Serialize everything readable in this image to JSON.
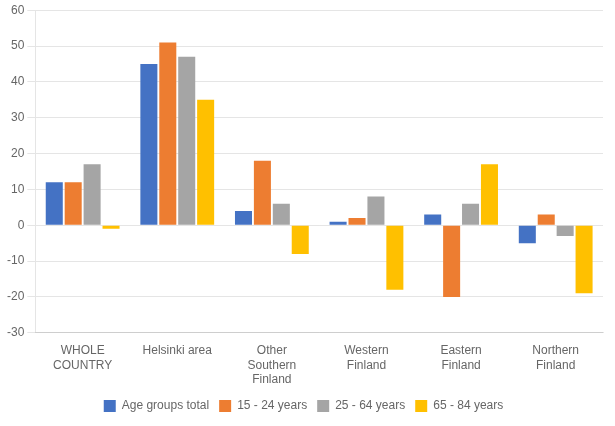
{
  "chart_data": {
    "type": "bar",
    "categories": [
      "WHOLE\nCOUNTRY",
      "Helsinki area",
      "Other\nSouthern\nFinland",
      "Western\nFinland",
      "Eastern\nFinland",
      "Northern\nFinland"
    ],
    "series": [
      {
        "name": "Age groups total",
        "color": "#4472C4",
        "values": [
          12,
          45,
          4,
          1,
          3,
          -5
        ]
      },
      {
        "name": "15 - 24 years",
        "color": "#ED7D31",
        "values": [
          12,
          51,
          18,
          2,
          -20,
          3
        ]
      },
      {
        "name": "25 - 64 years",
        "color": "#A5A5A5",
        "values": [
          17,
          47,
          6,
          8,
          6,
          -3
        ]
      },
      {
        "name": "65 - 84 years",
        "color": "#FFC000",
        "values": [
          -1,
          35,
          -8,
          -18,
          17,
          -19
        ]
      }
    ],
    "ylim": [
      -30,
      60
    ],
    "yticks": [
      -30,
      -20,
      -10,
      0,
      10,
      20,
      30,
      40,
      50,
      60
    ],
    "grid": true,
    "legend": "bottom"
  }
}
